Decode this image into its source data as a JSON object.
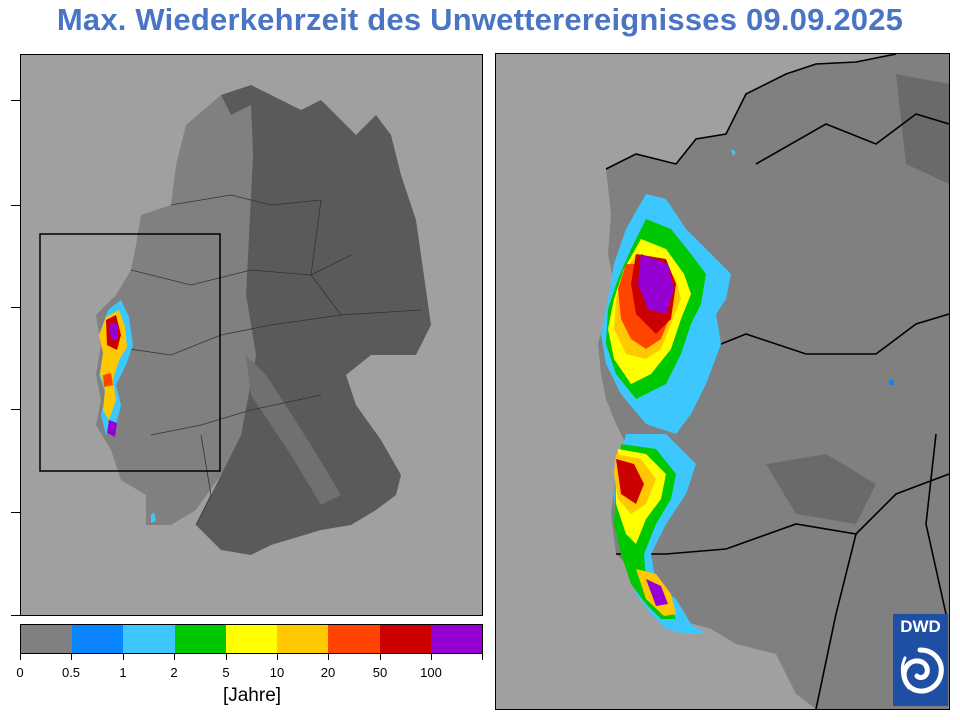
{
  "title": "Max. Wiederkehrzeit des Unwetterereignisses 09.09.2025",
  "colorbar": {
    "unit": "[Jahre]",
    "tick_labels": [
      "0",
      "0.5",
      "1",
      "2",
      "5",
      "10",
      "20",
      "50",
      "100"
    ],
    "colors": [
      "#808080",
      "#0a84ff",
      "#3cc8ff",
      "#00c800",
      "#ffff00",
      "#ffc800",
      "#ff4400",
      "#cc0000",
      "#9600d2"
    ]
  },
  "colors": {
    "background_gray": "#a0a0a0",
    "germany_west": "#808080",
    "germany_east": "#5a5a5a",
    "title_blue": "#4a74c4",
    "logo_blue": "#1f4fa3"
  },
  "logo": {
    "text": "DWD",
    "icon": "dwd-swirl-icon"
  }
}
